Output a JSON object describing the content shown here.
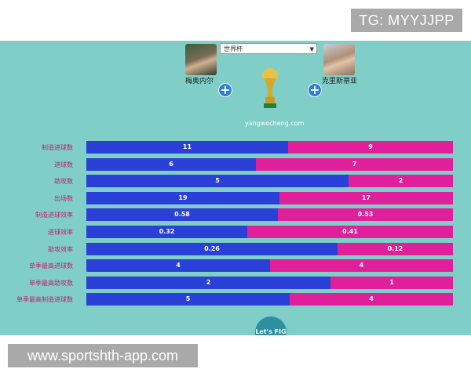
{
  "watermark_top": "TG: MYYJJPP",
  "watermark_bottom": "www.sportshth-app.com",
  "selector": {
    "value": "世界杯"
  },
  "players": {
    "left": "梅奥内尔",
    "right": "克里斯蒂亚"
  },
  "site": "yangwocheng.com",
  "lets_go": "Let's FIG",
  "colors": {
    "left": "#2b40d6",
    "right": "#e0209a",
    "background": "#7fcfc8"
  },
  "chart_data": {
    "type": "bar",
    "categories": [
      "制造进球数",
      "进球数",
      "助攻数",
      "出场数",
      "制造进球效率",
      "进球效率",
      "助攻效率",
      "单季最高进球数",
      "单季最高助攻数",
      "单季最高制造进球数"
    ],
    "series": [
      {
        "values": [
          11,
          6,
          5,
          19,
          0.58,
          0.32,
          0.26,
          4,
          2,
          5
        ],
        "labels": [
          "11",
          "6",
          "5",
          "19",
          "0.58",
          "0.32",
          "0.26",
          "4",
          "2",
          "5"
        ]
      },
      {
        "values": [
          9,
          7,
          2,
          17,
          0.53,
          0.41,
          0.12,
          4,
          1,
          4
        ],
        "labels": [
          "9",
          "7",
          "2",
          "17",
          "0.53",
          "0.41",
          "0.12",
          "4",
          "1",
          "4"
        ]
      }
    ]
  }
}
